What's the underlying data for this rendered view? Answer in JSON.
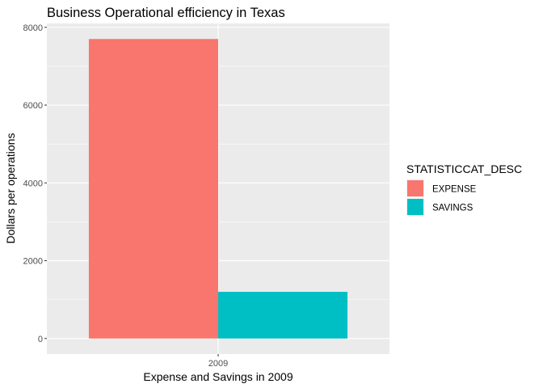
{
  "chart_data": {
    "type": "bar",
    "title": "Business Operational efficiency in Texas",
    "xlabel": "Expense and Savings in 2009",
    "ylabel": "Dollars per operations",
    "categories": [
      "2009"
    ],
    "series": [
      {
        "name": "EXPENSE",
        "values": [
          7700
        ],
        "color": "#F8766D"
      },
      {
        "name": "SAVINGS",
        "values": [
          1200
        ],
        "color": "#00BFC4"
      }
    ],
    "ylim": [
      -400,
      8100
    ],
    "yticks": [
      0,
      2000,
      4000,
      6000,
      8000
    ],
    "grid": true,
    "legend": {
      "title": "STATISTICCAT_DESC",
      "placement": "right"
    }
  }
}
